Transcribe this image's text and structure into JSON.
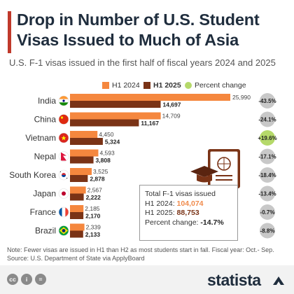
{
  "header": {
    "title": "Drop in Number of U.S. Student Visas Issued to Much of Asia",
    "subtitle": "U.S. F-1 visas issued in the first half of fiscal years 2024 and 2025"
  },
  "legend": {
    "h1_2024": "H1 2024",
    "h1_2025": "H1 2025",
    "percent_change": "Percent change"
  },
  "colors": {
    "h1_2024": "#f5873e",
    "h1_2025": "#7a3316",
    "negative_change": "#c8c8c8",
    "positive_change": "#b5d96a",
    "accent": "#c0392b"
  },
  "chart_data": {
    "type": "bar",
    "orientation": "horizontal",
    "categories": [
      "India",
      "China",
      "Vietnam",
      "Nepal",
      "South Korea",
      "Japan",
      "France",
      "Brazil"
    ],
    "flags": [
      "india-flag-icon",
      "china-flag-icon",
      "vietnam-flag-icon",
      "nepal-flag-icon",
      "south-korea-flag-icon",
      "japan-flag-icon",
      "france-flag-icon",
      "brazil-flag-icon"
    ],
    "series": [
      {
        "name": "H1 2024",
        "values": [
          25990,
          14709,
          4450,
          4593,
          3525,
          2567,
          2185,
          2339
        ],
        "labels": [
          "25,990",
          "14,709",
          "4,450",
          "4,593",
          "3,525",
          "2,567",
          "2,185",
          "2,339"
        ]
      },
      {
        "name": "H1 2025",
        "values": [
          14697,
          11167,
          5324,
          3808,
          2878,
          2222,
          2170,
          2133
        ],
        "labels": [
          "14,697",
          "11,167",
          "5,324",
          "3,808",
          "2,878",
          "2,222",
          "2,170",
          "2,133"
        ]
      }
    ],
    "percent_change": [
      -43.5,
      -24.1,
      19.6,
      -17.1,
      -18.4,
      -13.4,
      -0.7,
      -8.8
    ],
    "percent_change_labels": [
      "-43.5%",
      "-24.1%",
      "+19.6%",
      "-17.1%",
      "-18.4%",
      "-13.4%",
      "-0.7%",
      "-8.8%"
    ],
    "xlim": [
      0,
      25990
    ],
    "grid": false,
    "legend_position": "top"
  },
  "totals_box": {
    "heading": "Total F-1 visas issued",
    "h1_2024_label": "H1 2024:",
    "h1_2024_value": "104,074",
    "h1_2025_label": "H1 2025:",
    "h1_2025_value": "88,753",
    "change_label": "Percent change:",
    "change_value": "-14.7%"
  },
  "note": "Note: Fewer visas are issued in H1 than H2 as most students start in fall. Fiscal year: Oct.- Sep.",
  "source": "Source: U.S. Department of State via ApplyBoard",
  "footer": {
    "brand": "statista",
    "icons": [
      "creative-commons-icon",
      "attribution-icon",
      "equals-icon"
    ]
  }
}
